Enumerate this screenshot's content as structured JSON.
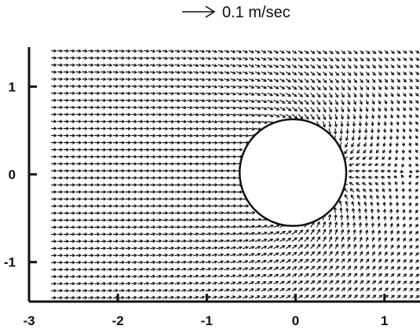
{
  "chart_data": {
    "type": "scatter",
    "subtype": "vector-field",
    "title": "",
    "xlabel": "",
    "ylabel": "",
    "xlim": [
      -3.0,
      1.4
    ],
    "ylim": [
      -1.45,
      1.45
    ],
    "x_ticks": [
      -3,
      -2,
      -1,
      0,
      1
    ],
    "y_ticks": [
      -1,
      0,
      1
    ],
    "x_tick_labels": [
      "-3",
      "-2",
      "-1",
      "0",
      "1"
    ],
    "y_tick_labels": [
      "-1",
      "0",
      "1"
    ],
    "scale_arrow_label": "0.1 m/sec",
    "scale_arrow_speed": 0.1,
    "obstacle": {
      "shape": "circle",
      "center": [
        -0.03,
        0.02
      ],
      "radius": 0.6,
      "fill": "#ffffff"
    },
    "grid": false,
    "legend": "none",
    "colors": {
      "vectors": "#111111",
      "axes": "#111111",
      "background": "#ffffff"
    }
  }
}
